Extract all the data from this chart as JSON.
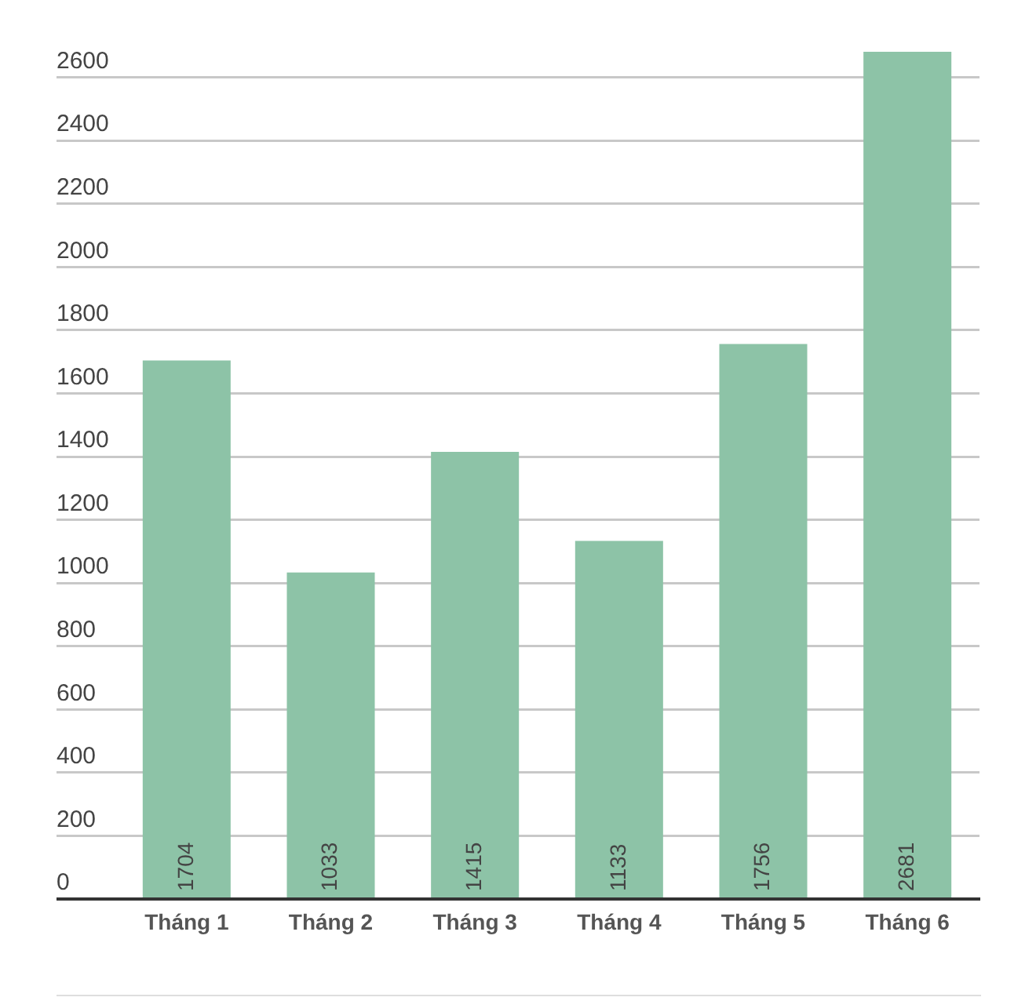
{
  "chart_data": {
    "type": "bar",
    "categories": [
      "Tháng 1",
      "Tháng 2",
      "Tháng 3",
      "Tháng 4",
      "Tháng 5",
      "Tháng 6"
    ],
    "values": [
      1704,
      1033,
      1415,
      1133,
      1756,
      2681
    ],
    "color": "#8dc3a7",
    "ylim": [
      0,
      2681
    ],
    "yticks": [
      0,
      200,
      400,
      600,
      800,
      1000,
      1200,
      1400,
      1600,
      1800,
      2000,
      2200,
      2400,
      2600
    ],
    "grid": "y",
    "data_labels": true
  }
}
